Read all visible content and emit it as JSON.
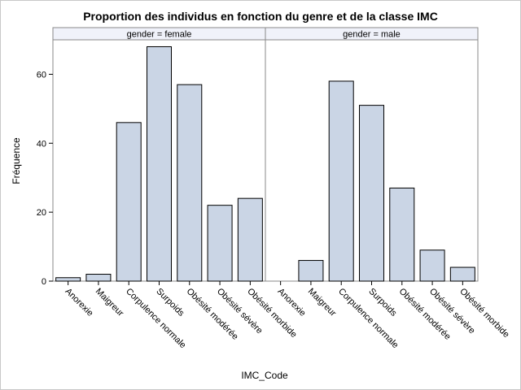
{
  "chart_data": {
    "type": "bar",
    "title": "Proportion des individus en fonction du genre et de la classe IMC",
    "xlabel": "IMC_Code",
    "ylabel": "Fréquence",
    "ylim": [
      0,
      70
    ],
    "yticks": [
      0,
      20,
      40,
      60
    ],
    "grid": false,
    "categories": [
      "Anorexie",
      "Maigreur",
      "Corpulence normale",
      "Surpoids",
      "Obésité modérée",
      "Obésité sévère",
      "Obésité morbide"
    ],
    "panels": [
      {
        "label": "gender = female",
        "values": [
          1,
          2,
          46,
          68,
          57,
          22,
          24
        ]
      },
      {
        "label": "gender = male",
        "values": [
          0,
          6,
          58,
          51,
          27,
          9,
          4
        ]
      }
    ],
    "colors": {
      "bar_fill": "#cad5e5",
      "bar_stroke": "#000000",
      "panel_header_bg": "#f0f2fa",
      "frame": "#888888",
      "background": "#ffffff"
    }
  }
}
